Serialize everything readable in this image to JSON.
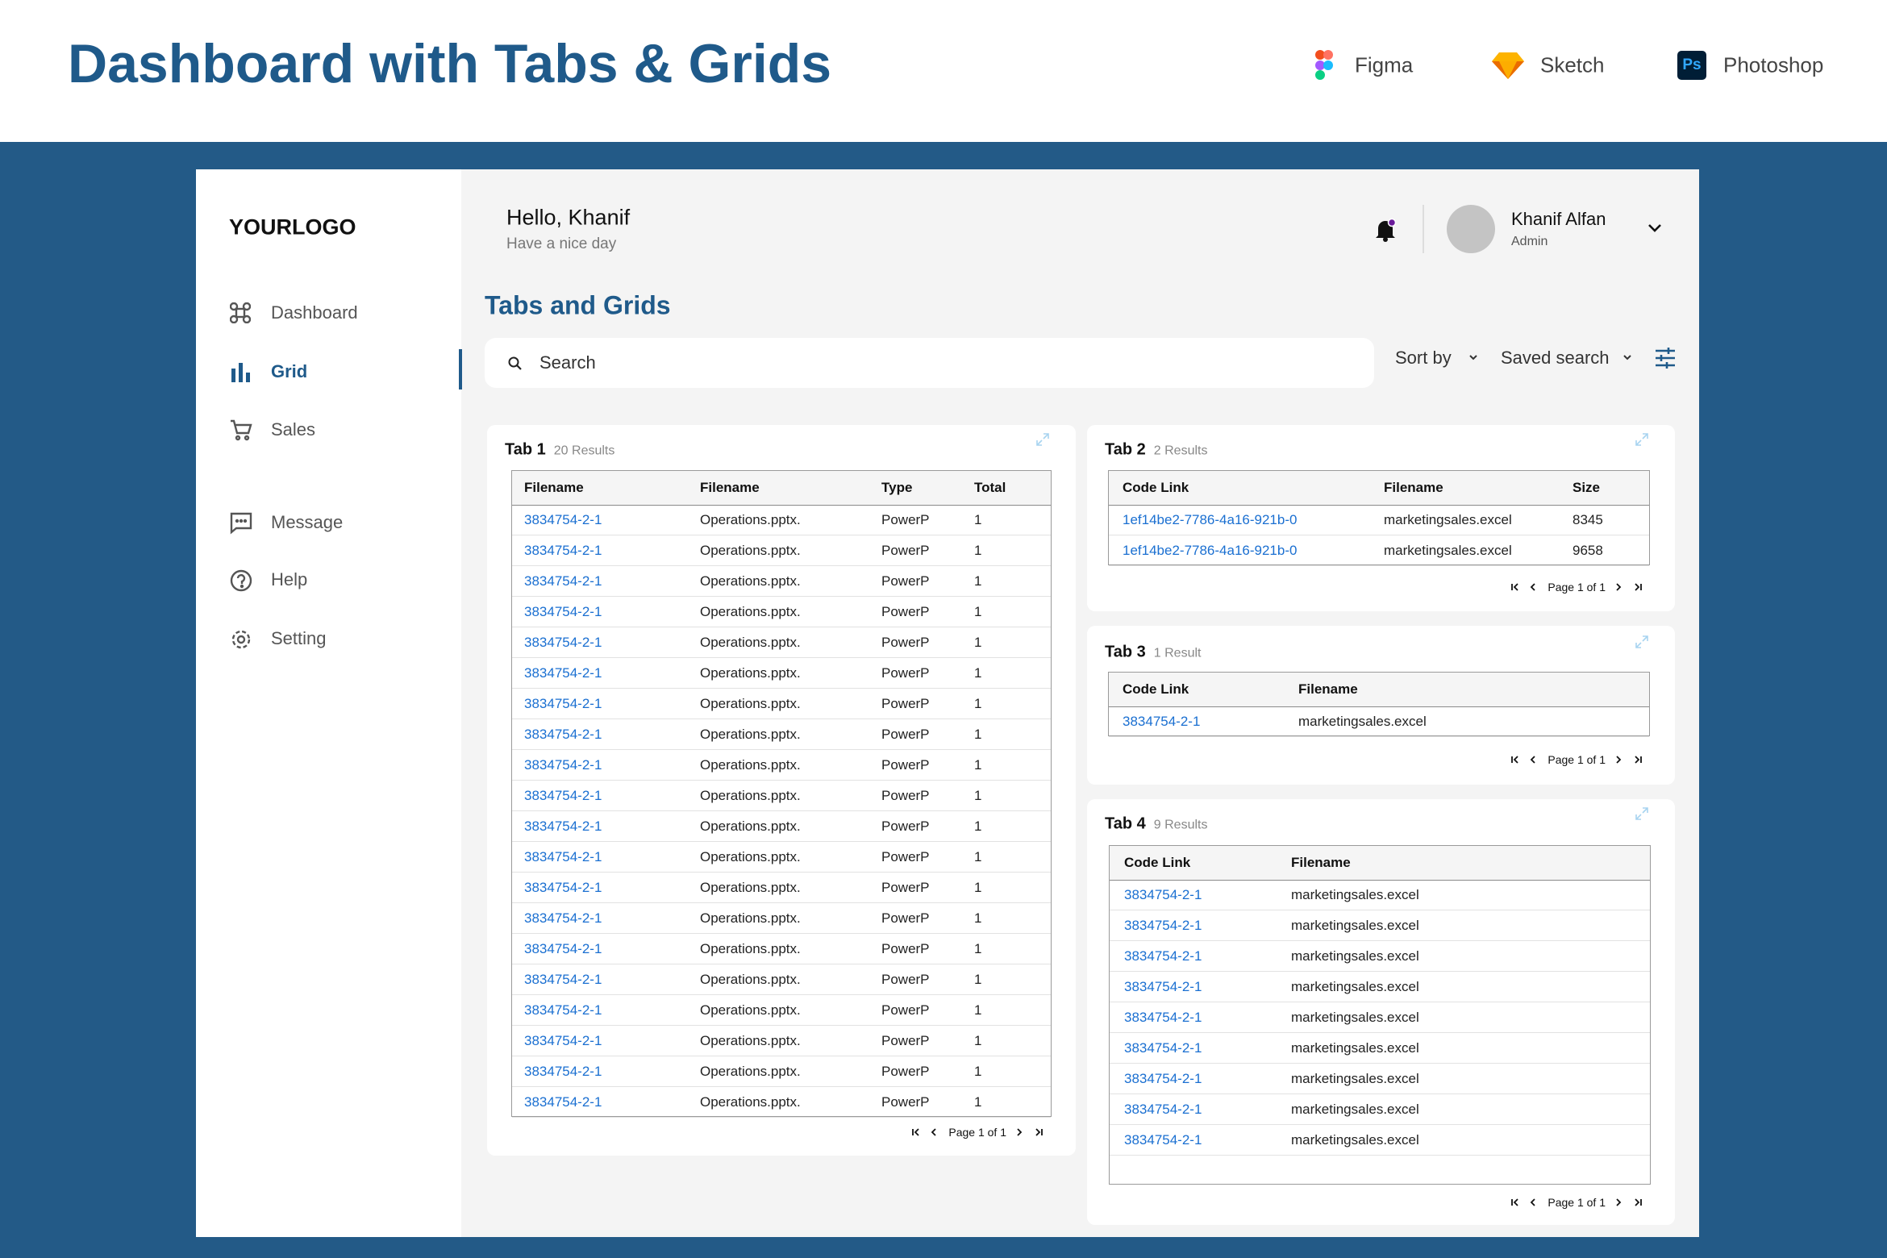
{
  "header": {
    "title": "Dashboard with Tabs & Grids",
    "tools": [
      {
        "name": "Figma"
      },
      {
        "name": "Sketch"
      },
      {
        "name": "Photoshop",
        "icon_text": "Ps"
      }
    ]
  },
  "sidebar": {
    "logo": "YOURLOGO",
    "nav": [
      "Dashboard",
      "Grid",
      "Sales",
      "Message",
      "Help",
      "Setting"
    ]
  },
  "topbar": {
    "greeting": "Hello, Khanif",
    "subtitle": "Have a nice day",
    "user_name": "Khanif Alfan",
    "user_role": "Admin"
  },
  "page": {
    "title": "Tabs and Grids",
    "search_placeholder": "Search",
    "sort": "Sort by",
    "saved_search": "Saved search"
  },
  "tabs": [
    {
      "name": "Tab 1",
      "results": "20 Results",
      "columns": [
        "Filename",
        "Filename",
        "Type",
        "Total"
      ],
      "rows": [
        [
          "3834754-2-1",
          "Operations.pptx.",
          "PowerP",
          1
        ],
        [
          "3834754-2-1",
          "Operations.pptx.",
          "PowerP",
          1
        ],
        [
          "3834754-2-1",
          "Operations.pptx.",
          "PowerP",
          1
        ],
        [
          "3834754-2-1",
          "Operations.pptx.",
          "PowerP",
          1
        ],
        [
          "3834754-2-1",
          "Operations.pptx.",
          "PowerP",
          1
        ],
        [
          "3834754-2-1",
          "Operations.pptx.",
          "PowerP",
          1
        ],
        [
          "3834754-2-1",
          "Operations.pptx.",
          "PowerP",
          1
        ],
        [
          "3834754-2-1",
          "Operations.pptx.",
          "PowerP",
          1
        ],
        [
          "3834754-2-1",
          "Operations.pptx.",
          "PowerP",
          1
        ],
        [
          "3834754-2-1",
          "Operations.pptx.",
          "PowerP",
          1
        ],
        [
          "3834754-2-1",
          "Operations.pptx.",
          "PowerP",
          1
        ],
        [
          "3834754-2-1",
          "Operations.pptx.",
          "PowerP",
          1
        ],
        [
          "3834754-2-1",
          "Operations.pptx.",
          "PowerP",
          1
        ],
        [
          "3834754-2-1",
          "Operations.pptx.",
          "PowerP",
          1
        ],
        [
          "3834754-2-1",
          "Operations.pptx.",
          "PowerP",
          1
        ],
        [
          "3834754-2-1",
          "Operations.pptx.",
          "PowerP",
          1
        ],
        [
          "3834754-2-1",
          "Operations.pptx.",
          "PowerP",
          1
        ],
        [
          "3834754-2-1",
          "Operations.pptx.",
          "PowerP",
          1
        ],
        [
          "3834754-2-1",
          "Operations.pptx.",
          "PowerP",
          1
        ],
        [
          "3834754-2-1",
          "Operations.pptx.",
          "PowerP",
          1
        ]
      ],
      "pagination": "Page 1 of 1"
    },
    {
      "name": "Tab 2",
      "results": "2 Results",
      "columns": [
        "Code Link",
        "Filename",
        "Size"
      ],
      "rows": [
        [
          "1ef14be2-7786-4a16-921b-0",
          "marketingsales.excel",
          8345
        ],
        [
          "1ef14be2-7786-4a16-921b-0",
          "marketingsales.excel",
          9658
        ]
      ],
      "pagination": "Page 1 of 1"
    },
    {
      "name": "Tab 3",
      "results": "1 Result",
      "columns": [
        "Code Link",
        "Filename"
      ],
      "rows": [
        [
          "3834754-2-1",
          "marketingsales.excel"
        ]
      ],
      "pagination": "Page 1 of 1"
    },
    {
      "name": "Tab 4",
      "results": "9 Results",
      "columns": [
        "Code Link",
        "Filename"
      ],
      "rows": [
        [
          "3834754-2-1",
          "marketingsales.excel"
        ],
        [
          "3834754-2-1",
          "marketingsales.excel"
        ],
        [
          "3834754-2-1",
          "marketingsales.excel"
        ],
        [
          "3834754-2-1",
          "marketingsales.excel"
        ],
        [
          "3834754-2-1",
          "marketingsales.excel"
        ],
        [
          "3834754-2-1",
          "marketingsales.excel"
        ],
        [
          "3834754-2-1",
          "marketingsales.excel"
        ],
        [
          "3834754-2-1",
          "marketingsales.excel"
        ],
        [
          "3834754-2-1",
          "marketingsales.excel"
        ]
      ],
      "pagination": "Page 1 of 1"
    }
  ]
}
